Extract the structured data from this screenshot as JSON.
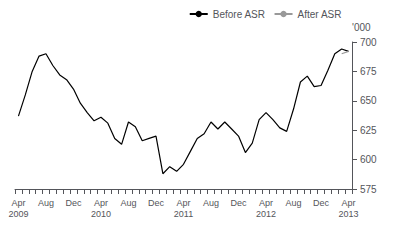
{
  "chart_data": {
    "type": "line",
    "ylabel": "'000",
    "categories": [
      "Apr\n2009",
      null,
      null,
      null,
      "Aug",
      null,
      null,
      null,
      "Dec",
      null,
      null,
      null,
      "Apr\n2010",
      null,
      null,
      null,
      "Aug",
      null,
      null,
      null,
      "Dec",
      null,
      null,
      null,
      "Apr\n2011",
      null,
      null,
      null,
      "Aug",
      null,
      null,
      null,
      "Dec",
      null,
      null,
      null,
      "Apr\n2012",
      null,
      null,
      null,
      "Aug",
      null,
      null,
      null,
      "Dec",
      null,
      null,
      null,
      "Apr\n2013"
    ],
    "series": [
      {
        "name": "Before ASR",
        "color": "#000000",
        "values": [
          637,
          655,
          675,
          688,
          690,
          680,
          672,
          668,
          660,
          648,
          640,
          633,
          636,
          631,
          618,
          613,
          632,
          628,
          616,
          618,
          620,
          588,
          594,
          590,
          596,
          607,
          618,
          622,
          632,
          626,
          632,
          626,
          620,
          606,
          614,
          634,
          640,
          634,
          627,
          624,
          643,
          666,
          671,
          662,
          663,
          676,
          690,
          694,
          692
        ]
      },
      {
        "name": "After ASR",
        "color": "#999999",
        "values": [
          null,
          null,
          null,
          null,
          null,
          null,
          null,
          null,
          null,
          null,
          null,
          null,
          null,
          null,
          null,
          null,
          null,
          null,
          null,
          null,
          null,
          null,
          null,
          null,
          null,
          null,
          null,
          null,
          null,
          null,
          null,
          null,
          null,
          null,
          null,
          null,
          null,
          null,
          null,
          null,
          null,
          null,
          null,
          null,
          null,
          null,
          null,
          690,
          692
        ]
      }
    ],
    "ylim": [
      575,
      700
    ],
    "yticks": [
      575,
      600,
      625,
      650,
      675,
      700
    ],
    "grid": false,
    "legend": "upper right"
  }
}
